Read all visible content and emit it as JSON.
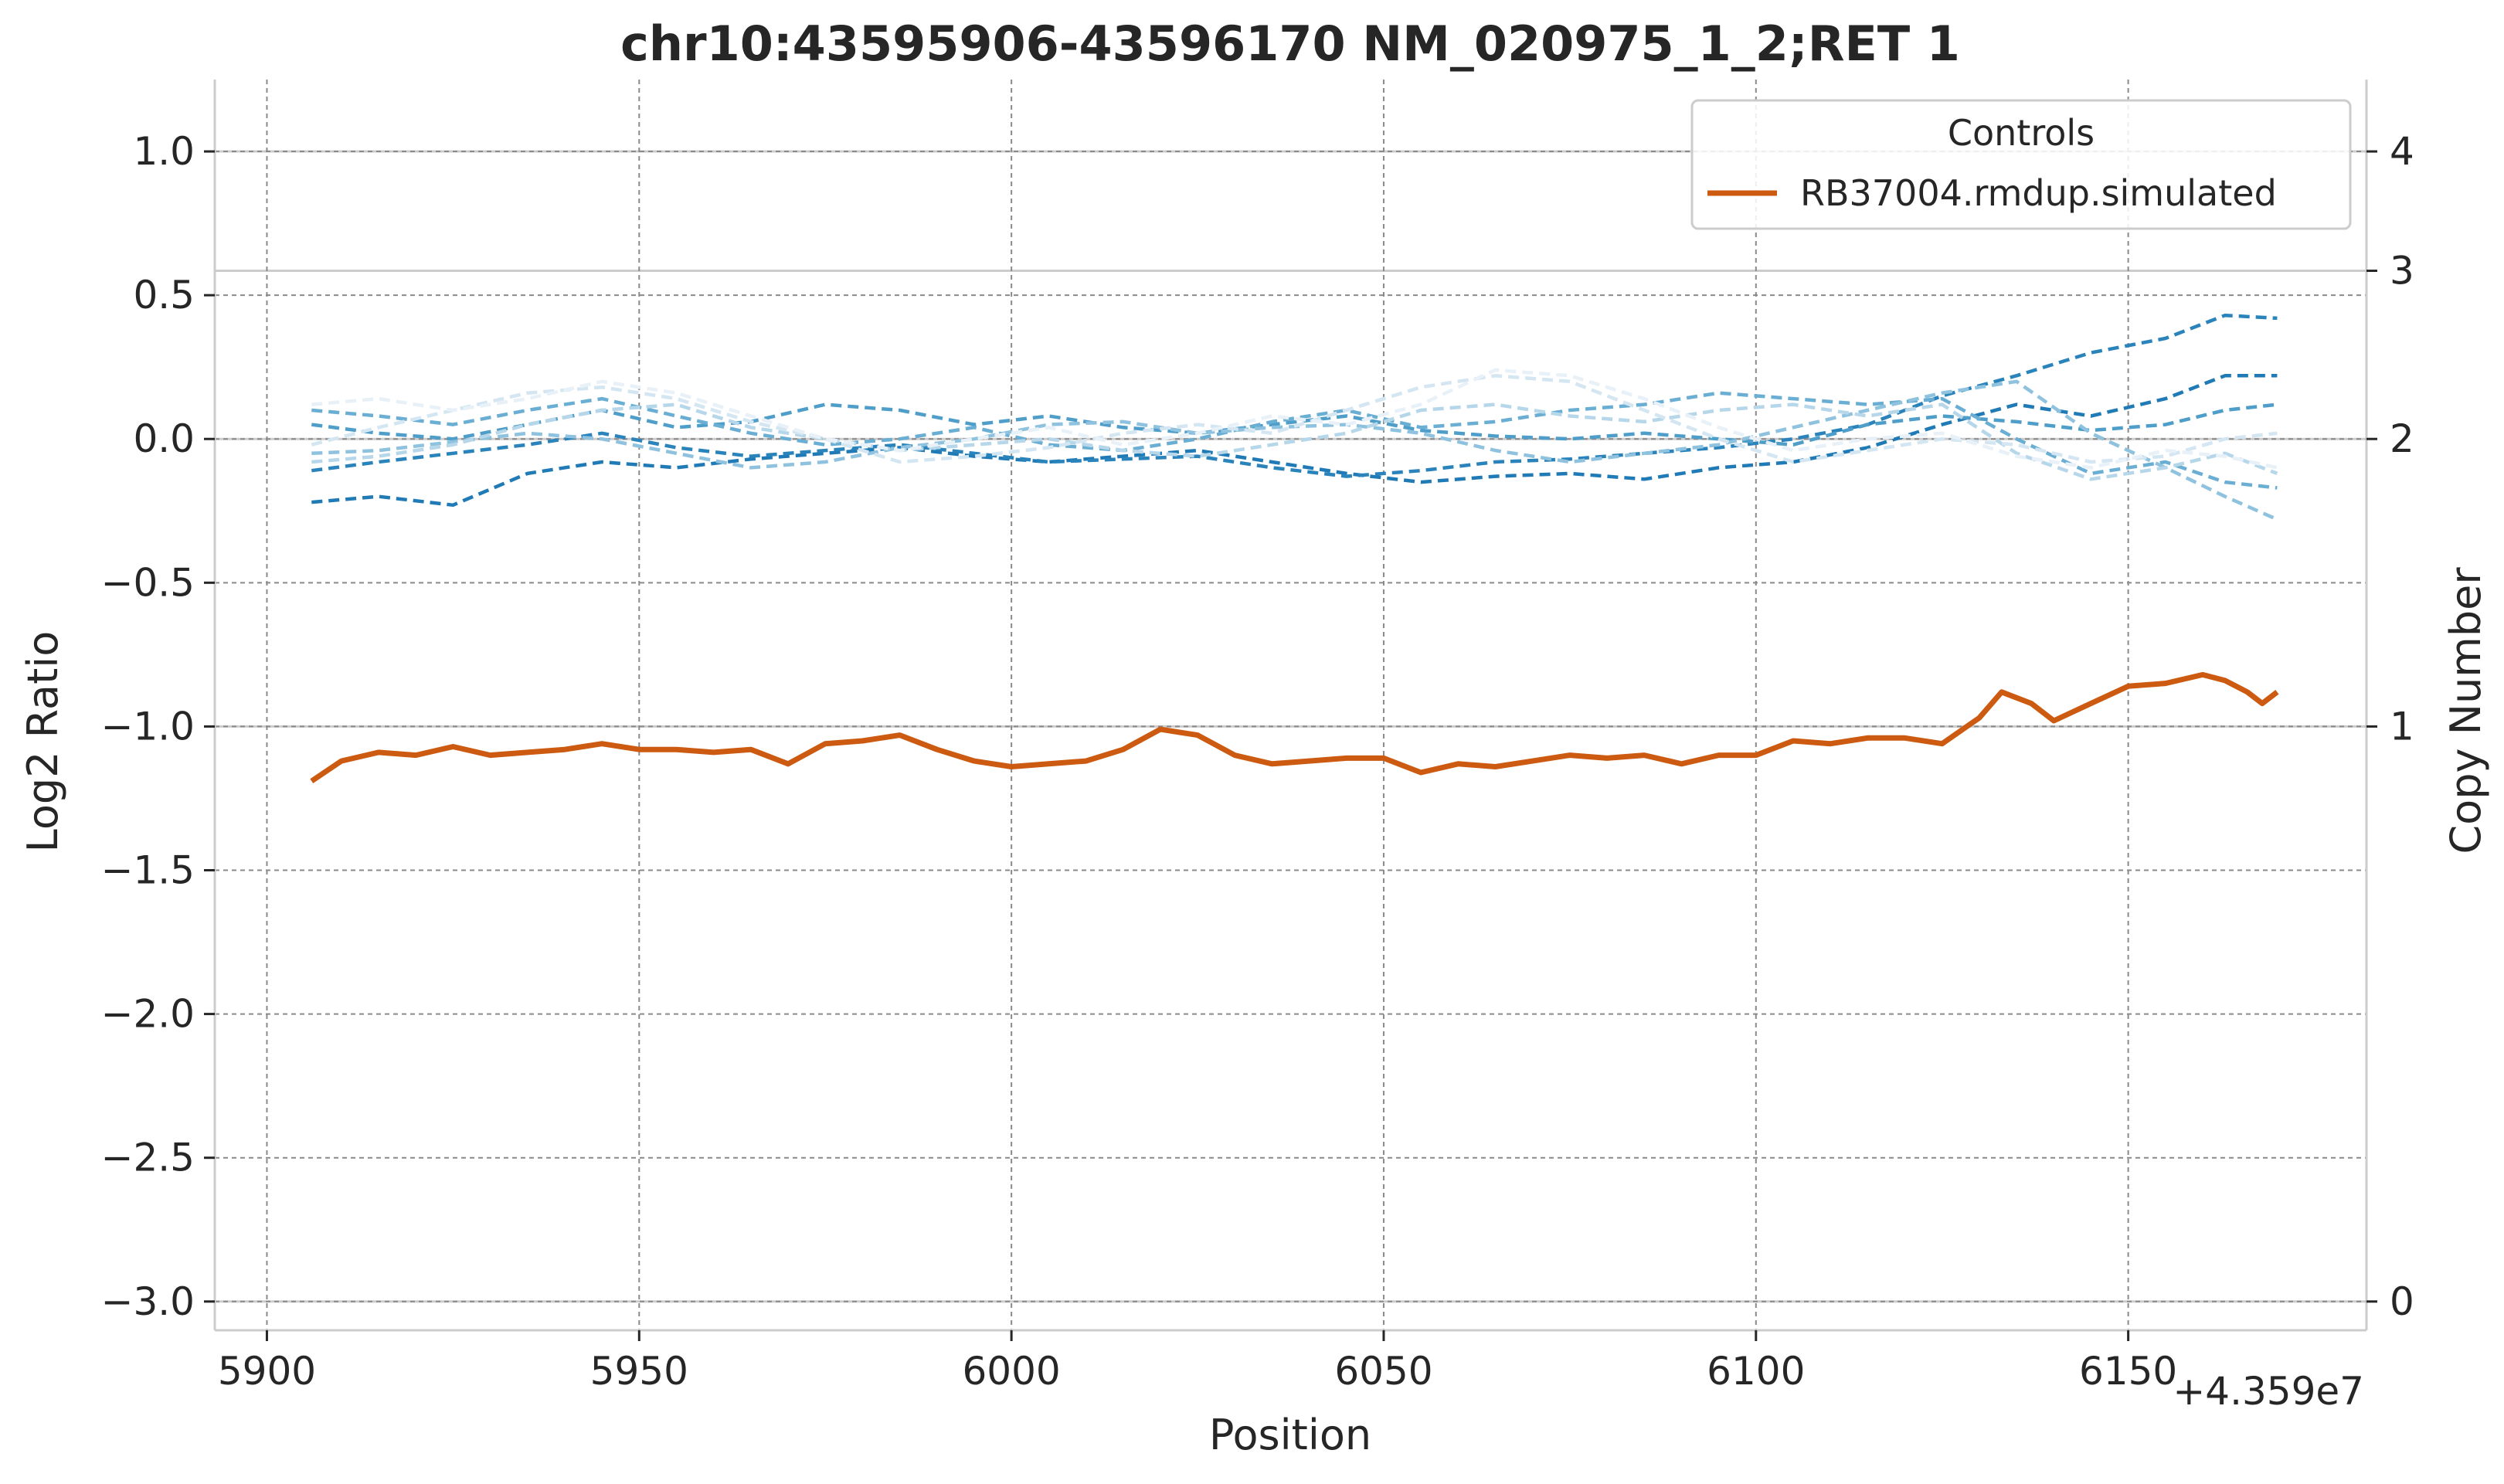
{
  "chart_data": {
    "type": "line",
    "title": "chr10:43595906-43596170 NM_020975_1_2;RET 1",
    "xlabel": "Position",
    "ylabel": "Log2 Ratio",
    "y2label": "Copy Number",
    "x_offset_label": "+4.359e7",
    "xlim": [
      43595893,
      43596182
    ],
    "ylim": [
      -3.1,
      1.25
    ],
    "x_ticks": [
      43595900,
      43595950,
      43596000,
      43596050,
      43596100,
      43596150
    ],
    "x_tick_labels": [
      "5900",
      "5950",
      "6000",
      "6050",
      "6100",
      "6150"
    ],
    "y_ticks": [
      1.0,
      0.5,
      0.0,
      -0.5,
      -1.0,
      -1.5,
      -2.0,
      -2.5,
      -3.0
    ],
    "y_tick_labels": [
      "1.0",
      "0.5",
      "0.0",
      "−0.5",
      "−1.0",
      "−1.5",
      "−2.0",
      "−2.5",
      "−3.0"
    ],
    "y2_ticks": [
      4,
      3,
      2,
      1,
      0
    ],
    "y2_tick_labels": [
      "4",
      "3",
      "2",
      "1",
      "0"
    ],
    "grid": true,
    "legend": {
      "title": "Controls",
      "placement": "top-right",
      "entries": [
        "RB37004.rmdup.simulated"
      ]
    },
    "colors": {
      "sample": "#cc5a10",
      "controls": [
        "#1f7ab5",
        "#2a84bb",
        "#4f9ec9",
        "#6aafd3",
        "#8fc2de",
        "#b6d6e9",
        "#d3e6f2",
        "#e8f1f8"
      ]
    },
    "series": [
      {
        "name": "RB37004.rmdup.simulated",
        "style": "solid",
        "x": [
          43595906,
          43595910,
          43595915,
          43595920,
          43595925,
          43595930,
          43595935,
          43595940,
          43595945,
          43595950,
          43595955,
          43595960,
          43595965,
          43595970,
          43595975,
          43595980,
          43595985,
          43595990,
          43595995,
          43596000,
          43596005,
          43596010,
          43596015,
          43596020,
          43596025,
          43596030,
          43596035,
          43596040,
          43596045,
          43596050,
          43596055,
          43596060,
          43596065,
          43596070,
          43596075,
          43596080,
          43596085,
          43596090,
          43596095,
          43596100,
          43596105,
          43596110,
          43596115,
          43596120,
          43596125,
          43596130,
          43596133,
          43596137,
          43596140,
          43596145,
          43596150,
          43596155,
          43596160,
          43596163,
          43596166,
          43596168,
          43596170
        ],
        "y": [
          -1.19,
          -1.12,
          -1.09,
          -1.1,
          -1.07,
          -1.1,
          -1.09,
          -1.08,
          -1.06,
          -1.08,
          -1.08,
          -1.09,
          -1.08,
          -1.13,
          -1.06,
          -1.05,
          -1.03,
          -1.08,
          -1.12,
          -1.14,
          -1.13,
          -1.12,
          -1.08,
          -1.01,
          -1.03,
          -1.1,
          -1.13,
          -1.12,
          -1.11,
          -1.11,
          -1.16,
          -1.13,
          -1.14,
          -1.12,
          -1.1,
          -1.11,
          -1.1,
          -1.13,
          -1.1,
          -1.1,
          -1.05,
          -1.06,
          -1.04,
          -1.04,
          -1.06,
          -0.97,
          -0.88,
          -0.92,
          -0.98,
          -0.92,
          -0.86,
          -0.85,
          -0.82,
          -0.84,
          -0.88,
          -0.92,
          -0.88
        ]
      },
      {
        "name": "",
        "style": "dashed",
        "x": [
          43595906,
          43595915,
          43595925,
          43595935,
          43595945,
          43595955,
          43595965,
          43595975,
          43595985,
          43595995,
          43596005,
          43596015,
          43596025,
          43596035,
          43596045,
          43596055,
          43596065,
          43596075,
          43596085,
          43596095,
          43596105,
          43596115,
          43596125,
          43596135,
          43596145,
          43596155,
          43596163,
          43596170
        ],
        "y": [
          -0.22,
          -0.2,
          -0.23,
          -0.12,
          -0.08,
          -0.1,
          -0.07,
          -0.05,
          -0.03,
          -0.06,
          -0.08,
          -0.06,
          -0.04,
          -0.08,
          -0.12,
          -0.15,
          -0.13,
          -0.12,
          -0.14,
          -0.1,
          -0.08,
          -0.03,
          0.05,
          0.12,
          0.08,
          0.14,
          0.22,
          0.22
        ]
      },
      {
        "name": "",
        "style": "dashed",
        "x": [
          43595906,
          43595915,
          43595925,
          43595935,
          43595945,
          43595955,
          43595965,
          43595975,
          43595985,
          43595995,
          43596005,
          43596015,
          43596025,
          43596035,
          43596045,
          43596055,
          43596065,
          43596075,
          43596085,
          43596095,
          43596105,
          43596115,
          43596125,
          43596135,
          43596145,
          43596155,
          43596163,
          43596170
        ],
        "y": [
          -0.11,
          -0.08,
          -0.05,
          -0.02,
          0.02,
          -0.03,
          -0.06,
          -0.04,
          -0.02,
          -0.05,
          -0.08,
          -0.07,
          -0.06,
          -0.1,
          -0.13,
          -0.11,
          -0.08,
          -0.07,
          -0.05,
          -0.03,
          0.0,
          0.05,
          0.15,
          0.22,
          0.3,
          0.35,
          0.43,
          0.42
        ]
      },
      {
        "name": "",
        "style": "dashed",
        "x": [
          43595906,
          43595915,
          43595925,
          43595935,
          43595945,
          43595955,
          43595965,
          43595975,
          43595985,
          43595995,
          43596005,
          43596015,
          43596025,
          43596035,
          43596045,
          43596055,
          43596065,
          43596075,
          43596085,
          43596095,
          43596105,
          43596115,
          43596125,
          43596135,
          43596145,
          43596155,
          43596163,
          43596170
        ],
        "y": [
          0.05,
          0.02,
          0.0,
          0.05,
          0.1,
          0.04,
          0.06,
          0.12,
          0.1,
          0.05,
          0.08,
          0.04,
          0.02,
          0.05,
          0.08,
          0.03,
          0.01,
          0.0,
          0.02,
          0.0,
          -0.02,
          0.05,
          0.08,
          0.06,
          0.03,
          0.05,
          0.1,
          0.12
        ]
      },
      {
        "name": "",
        "style": "dashed",
        "x": [
          43595906,
          43595915,
          43595925,
          43595935,
          43595945,
          43595955,
          43595965,
          43595975,
          43595985,
          43595995,
          43596005,
          43596015,
          43596025,
          43596035,
          43596045,
          43596055,
          43596065,
          43596075,
          43596085,
          43596095,
          43596105,
          43596115,
          43596125,
          43596135,
          43596145,
          43596155,
          43596163,
          43596170
        ],
        "y": [
          0.1,
          0.08,
          0.05,
          0.1,
          0.14,
          0.08,
          0.02,
          -0.02,
          0.0,
          0.04,
          -0.02,
          -0.04,
          0.0,
          0.06,
          0.1,
          0.04,
          0.06,
          0.1,
          0.12,
          0.16,
          0.14,
          0.12,
          0.14,
          0.0,
          -0.12,
          -0.08,
          -0.15,
          -0.17
        ]
      },
      {
        "name": "",
        "style": "dashed",
        "x": [
          43595906,
          43595915,
          43595925,
          43595935,
          43595945,
          43595955,
          43595965,
          43595975,
          43595985,
          43595995,
          43596005,
          43596015,
          43596025,
          43596035,
          43596045,
          43596055,
          43596065,
          43596075,
          43596085,
          43596095,
          43596105,
          43596115,
          43596125,
          43596135,
          43596145,
          43596155,
          43596163,
          43596170
        ],
        "y": [
          -0.05,
          -0.04,
          -0.01,
          0.02,
          0.0,
          -0.05,
          -0.1,
          -0.08,
          -0.03,
          0.0,
          0.05,
          0.06,
          0.02,
          0.04,
          0.05,
          0.02,
          -0.04,
          -0.08,
          -0.05,
          -0.02,
          0.04,
          0.1,
          0.16,
          0.2,
          0.02,
          -0.1,
          -0.2,
          -0.28
        ]
      },
      {
        "name": "",
        "style": "dashed",
        "x": [
          43595906,
          43595915,
          43595925,
          43595935,
          43595945,
          43595955,
          43595965,
          43595975,
          43595985,
          43595995,
          43596005,
          43596015,
          43596025,
          43596035,
          43596045,
          43596055,
          43596065,
          43596075,
          43596085,
          43596095,
          43596105,
          43596115,
          43596125,
          43596135,
          43596145,
          43596155,
          43596163,
          43596170
        ],
        "y": [
          -0.08,
          -0.06,
          -0.02,
          0.05,
          0.1,
          0.12,
          0.04,
          0.0,
          -0.04,
          -0.02,
          0.0,
          -0.04,
          -0.06,
          -0.02,
          0.02,
          0.1,
          0.12,
          0.08,
          0.06,
          0.1,
          0.12,
          0.08,
          0.12,
          -0.05,
          -0.14,
          -0.1,
          -0.05,
          -0.12
        ]
      },
      {
        "name": "",
        "style": "dashed",
        "x": [
          43595906,
          43595915,
          43595925,
          43595935,
          43595945,
          43595955,
          43595965,
          43595975,
          43595985,
          43595995,
          43596005,
          43596015,
          43596025,
          43596035,
          43596045,
          43596055,
          43596065,
          43596075,
          43596085,
          43596095,
          43596105,
          43596115,
          43596125,
          43596135,
          43596145,
          43596155,
          43596163,
          43596170
        ],
        "y": [
          -0.02,
          0.04,
          0.1,
          0.16,
          0.18,
          0.14,
          0.06,
          0.0,
          -0.08,
          -0.06,
          -0.03,
          0.02,
          0.05,
          0.02,
          0.1,
          0.18,
          0.22,
          0.2,
          0.1,
          0.0,
          -0.08,
          -0.04,
          0.0,
          -0.02,
          -0.08,
          -0.06,
          0.0,
          0.02
        ]
      },
      {
        "name": "",
        "style": "dashed",
        "x": [
          43595906,
          43595915,
          43595925,
          43595935,
          43595945,
          43595955,
          43595965,
          43595975,
          43595985,
          43595995,
          43596005,
          43596015,
          43596025,
          43596035,
          43596045,
          43596055,
          43596065,
          43596075,
          43596085,
          43596095,
          43596105,
          43596115,
          43596125,
          43596135,
          43596145,
          43596155,
          43596163,
          43596170
        ],
        "y": [
          0.12,
          0.14,
          0.1,
          0.14,
          0.2,
          0.16,
          0.08,
          0.0,
          -0.04,
          0.0,
          0.04,
          -0.02,
          0.02,
          0.08,
          0.05,
          0.12,
          0.24,
          0.22,
          0.14,
          0.04,
          -0.04,
          0.0,
          0.02,
          -0.06,
          -0.1,
          -0.04,
          -0.06,
          -0.1
        ]
      }
    ]
  }
}
